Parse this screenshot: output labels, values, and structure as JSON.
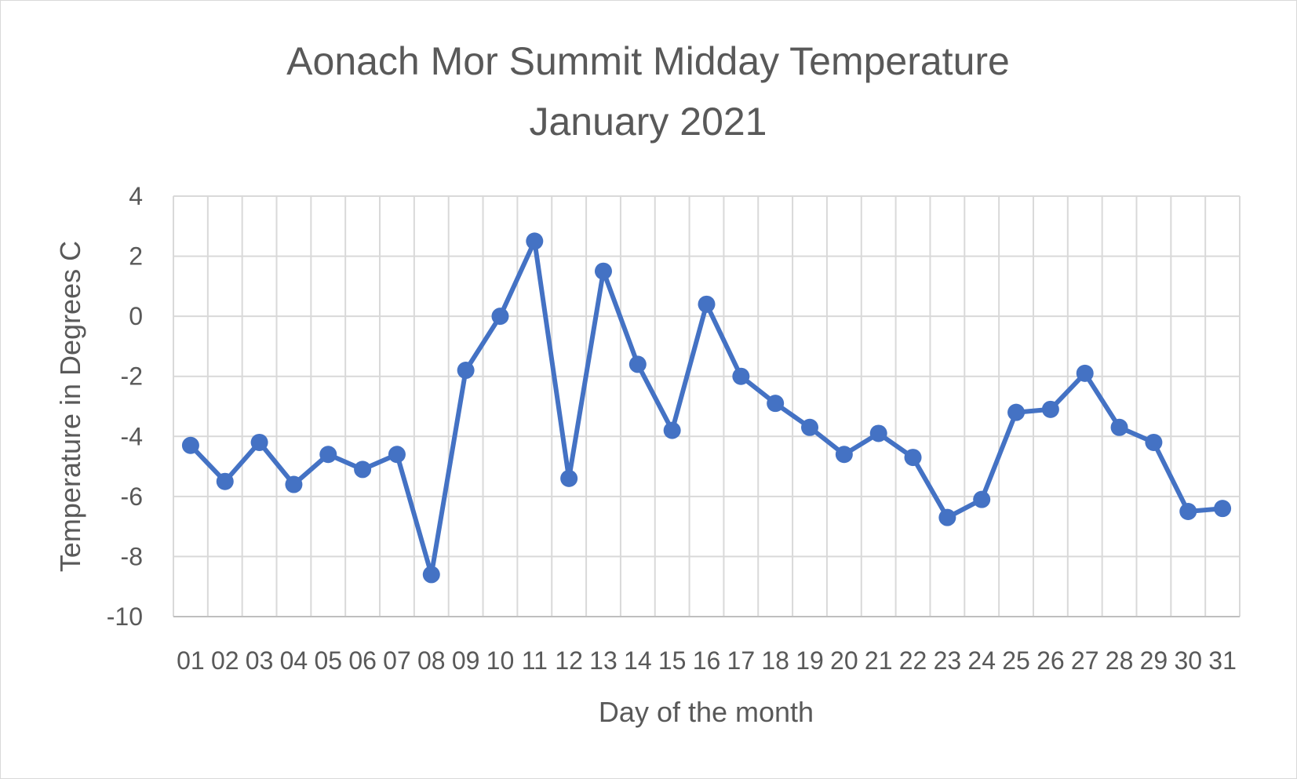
{
  "chart_data": {
    "type": "line",
    "title": [
      "Aonach Mor Summit Midday Temperature",
      "January 2021"
    ],
    "xlabel": "Day of the month",
    "ylabel": "Temperature in Degrees C",
    "categories": [
      "01",
      "02",
      "03",
      "04",
      "05",
      "06",
      "07",
      "08",
      "09",
      "10",
      "11",
      "12",
      "13",
      "14",
      "15",
      "16",
      "17",
      "18",
      "19",
      "20",
      "21",
      "22",
      "23",
      "24",
      "25",
      "26",
      "27",
      "28",
      "29",
      "30",
      "31"
    ],
    "y_ticks": [
      "4",
      "2",
      "0",
      "-2",
      "-4",
      "-6",
      "-8",
      "-10"
    ],
    "ylim": [
      -10,
      4
    ],
    "grid": true,
    "legend": "none",
    "series": [
      {
        "color": "#4472c4",
        "values": [
          -4.3,
          -5.5,
          -4.2,
          -5.6,
          -4.6,
          -5.1,
          -4.6,
          -8.6,
          -1.8,
          0.0,
          2.5,
          -5.4,
          1.5,
          -1.6,
          -3.8,
          0.4,
          -2.0,
          -2.9,
          -3.7,
          -4.6,
          -3.9,
          -4.7,
          -6.7,
          -6.1,
          -3.2,
          -3.1,
          -1.9,
          -3.7,
          -4.2,
          -6.5,
          -6.4
        ]
      }
    ]
  }
}
